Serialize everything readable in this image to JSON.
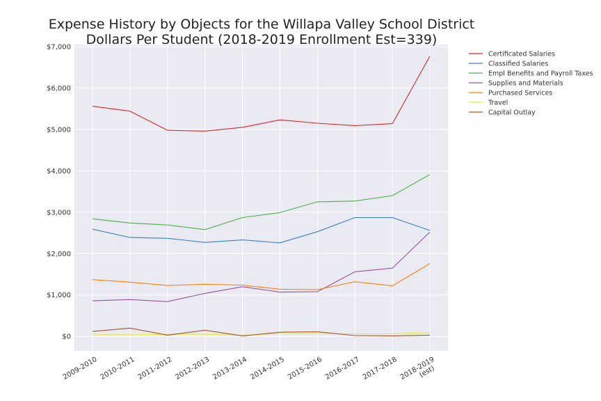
{
  "chart_data": {
    "type": "line",
    "title_line1": "Expense History by Objects for the Willapa Valley School District",
    "title_line2": "Dollars Per Student (2018-2019 Enrollment Est=339)",
    "xlabel": "",
    "ylabel": "",
    "ylim": [
      -350,
      7050
    ],
    "y_ticks": [
      0,
      1000,
      2000,
      3000,
      4000,
      5000,
      6000,
      7000
    ],
    "y_tick_labels": [
      "$0",
      "$1,000",
      "$2,000",
      "$3,000",
      "$4,000",
      "$5,000",
      "$6,000",
      "$7,000"
    ],
    "categories": [
      "2009-2010",
      "2010-2011",
      "2011-2012",
      "2012-2013",
      "2013-2014",
      "2014-2015",
      "2015-2016",
      "2016-2017",
      "2017-2018",
      "2018-2019\n(est)"
    ],
    "grid": true,
    "legend_position": "outside-right",
    "background": "#eaeaf2",
    "series": [
      {
        "name": "Certificated Salaries",
        "color": "#d62728",
        "values": [
          5560,
          5440,
          4980,
          4960,
          5050,
          5230,
          5150,
          5090,
          5140,
          6770
        ]
      },
      {
        "name": "Classified Salaries",
        "color": "#3a7fc4",
        "values": [
          2590,
          2390,
          2370,
          2270,
          2330,
          2260,
          2530,
          2870,
          2870,
          2560
        ]
      },
      {
        "name": "Empl Benefits and Payroll Taxes",
        "color": "#4daf4a",
        "values": [
          2840,
          2740,
          2690,
          2580,
          2870,
          2990,
          3250,
          3270,
          3400,
          3910
        ]
      },
      {
        "name": "Supplies and Materials",
        "color": "#984ea3",
        "values": [
          860,
          890,
          840,
          1040,
          1200,
          1070,
          1080,
          1560,
          1650,
          2520
        ]
      },
      {
        "name": "Purchased Services",
        "color": "#ff7f00",
        "values": [
          1370,
          1310,
          1230,
          1260,
          1240,
          1140,
          1130,
          1320,
          1220,
          1760
        ]
      },
      {
        "name": "Travel",
        "color": "#e8e83a",
        "values": [
          40,
          40,
          50,
          50,
          30,
          70,
          70,
          60,
          60,
          90
        ]
      },
      {
        "name": "Capital Outlay",
        "color": "#a65628",
        "values": [
          120,
          200,
          30,
          150,
          10,
          100,
          110,
          20,
          10,
          30
        ]
      }
    ]
  }
}
